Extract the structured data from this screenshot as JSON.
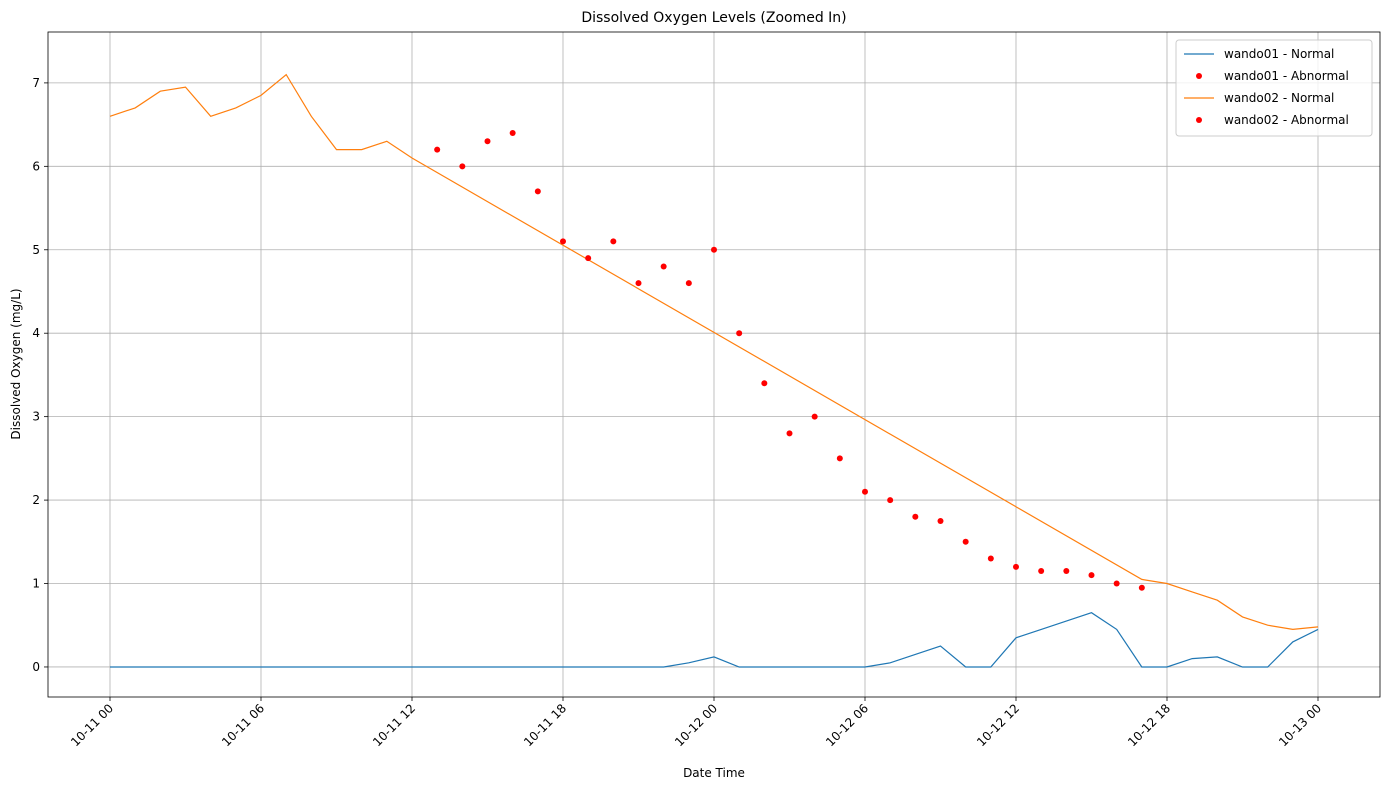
{
  "chart_data": {
    "type": "line",
    "title": "Dissolved Oxygen Levels (Zoomed In)",
    "x_label": "Date Time",
    "y_label": "Dissolved Oxygen (mg/L)",
    "xlim": [
      "10-11 00",
      "10-13 00"
    ],
    "xticks": [
      "10-11 00",
      "10-11 06",
      "10-11 12",
      "10-11 18",
      "10-12 00",
      "10-12 06",
      "10-12 12",
      "10-12 18",
      "10-13 00"
    ],
    "ylim": [
      -0.36,
      7.61
    ],
    "yticks": [
      0,
      1,
      2,
      3,
      4,
      5,
      6,
      7
    ],
    "grid": true,
    "legend": "upper right",
    "series": [
      {
        "name": "wando01 - Normal",
        "kind": "line",
        "color": "#1f77b4",
        "x": [
          "10-11 00",
          "10-11 01",
          "10-11 02",
          "10-11 03",
          "10-11 04",
          "10-11 05",
          "10-11 06",
          "10-11 07",
          "10-11 08",
          "10-11 09",
          "10-11 10",
          "10-11 11",
          "10-11 12",
          "10-11 13",
          "10-11 14",
          "10-11 15",
          "10-11 16",
          "10-11 17",
          "10-11 18",
          "10-11 19",
          "10-11 20",
          "10-11 21",
          "10-11 22",
          "10-11 23",
          "10-12 00",
          "10-12 01",
          "10-12 02",
          "10-12 03",
          "10-12 04",
          "10-12 05",
          "10-12 06",
          "10-12 07",
          "10-12 08",
          "10-12 09",
          "10-12 10",
          "10-12 11",
          "10-12 12",
          "10-12 13",
          "10-12 14",
          "10-12 15",
          "10-12 16",
          "10-12 17",
          "10-12 18",
          "10-12 19",
          "10-12 20",
          "10-12 21",
          "10-12 22",
          "10-12 23",
          "10-13 00"
        ],
        "values": [
          0,
          0,
          0,
          0,
          0,
          0,
          0,
          0,
          0,
          0,
          0,
          0,
          0,
          0,
          0,
          0,
          0,
          0,
          0,
          0,
          0,
          0,
          0,
          0.05,
          0.12,
          0,
          0,
          0,
          0,
          0,
          0,
          0.05,
          0.15,
          0.25,
          0,
          0,
          0.35,
          0.45,
          0.55,
          0.65,
          0.45,
          0,
          0,
          0.1,
          0.12,
          0,
          0,
          0.3,
          0.45
        ]
      },
      {
        "name": "wando01 - Abnormal",
        "kind": "scatter",
        "color": "#ff0000",
        "x": [],
        "values": []
      },
      {
        "name": "wando02 - Normal",
        "kind": "line",
        "color": "#ff7f0e",
        "x": [
          "10-11 00",
          "10-11 01",
          "10-11 02",
          "10-11 03",
          "10-11 04",
          "10-11 05",
          "10-11 06",
          "10-11 07",
          "10-11 08",
          "10-11 09",
          "10-11 10",
          "10-11 11",
          "10-11 12",
          "10-12 17",
          "10-12 18",
          "10-12 19",
          "10-12 20",
          "10-12 21",
          "10-12 22",
          "10-12 23",
          "10-13 00"
        ],
        "values": [
          6.6,
          6.7,
          6.9,
          6.95,
          6.6,
          6.7,
          6.85,
          7.1,
          6.6,
          6.2,
          6.2,
          6.3,
          6.1,
          1.05,
          1.0,
          0.9,
          0.8,
          0.6,
          0.5,
          0.45,
          0.48
        ]
      },
      {
        "name": "wando02 - Abnormal",
        "kind": "scatter",
        "color": "#ff0000",
        "x": [
          "10-11 13",
          "10-11 14",
          "10-11 15",
          "10-11 16",
          "10-11 17",
          "10-11 18",
          "10-11 19",
          "10-11 20",
          "10-11 21",
          "10-11 22",
          "10-11 23",
          "10-12 00",
          "10-12 01",
          "10-12 02",
          "10-12 03",
          "10-12 04",
          "10-12 05",
          "10-12 06",
          "10-12 07",
          "10-12 08",
          "10-12 09",
          "10-12 10",
          "10-12 11",
          "10-12 12",
          "10-12 13",
          "10-12 14",
          "10-12 15",
          "10-12 16",
          "10-12 17"
        ],
        "values": [
          6.2,
          6.0,
          6.3,
          6.4,
          5.7,
          5.1,
          4.9,
          5.1,
          4.6,
          4.8,
          4.6,
          5.0,
          4.0,
          3.4,
          2.8,
          3.0,
          2.5,
          2.1,
          2.0,
          1.8,
          1.75,
          1.5,
          1.3,
          1.2,
          1.15,
          1.15,
          1.1,
          1.0,
          0.95
        ]
      }
    ]
  }
}
